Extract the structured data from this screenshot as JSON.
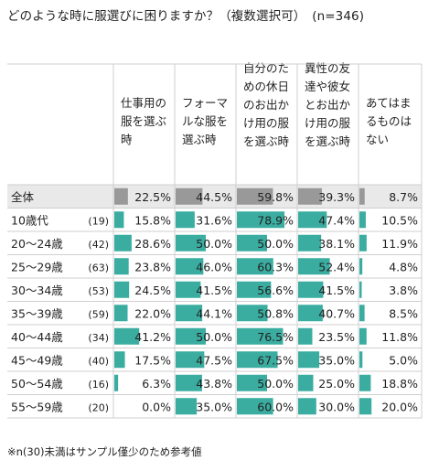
{
  "title": "どのような時に服選びに困りますか？（複数選択可）　(n=346)",
  "footnote": "※n(30)未満はサンプル僅少のため参考値",
  "colors": {
    "total_bar": "#999999",
    "bar": "#3aada0",
    "total_row_bg": "#e9e9e9",
    "grid": "#cfcfcf"
  },
  "chart_data": {
    "type": "table",
    "title": "どのような時に服選びに困りますか？（複数選択可）　(n=346)",
    "columns": [
      [
        "仕事用の",
        "服を選ぶ",
        "時"
      ],
      [
        "フォーマ",
        "ルな服を",
        "選ぶ時"
      ],
      [
        "自分のた",
        "めの休日",
        "のお出か",
        "け用の服",
        "を選ぶ時"
      ],
      [
        "異性の友",
        "達や彼女",
        "とお出か",
        "け用の服",
        "を選ぶ時"
      ],
      [
        "あてはま",
        "るものは",
        "ない"
      ]
    ],
    "rows": [
      {
        "label": "全体",
        "n": "",
        "values": [
          22.5,
          44.5,
          59.8,
          39.3,
          8.7
        ]
      },
      {
        "label": "10歳代",
        "n": "(19)",
        "values": [
          15.8,
          31.6,
          78.9,
          47.4,
          10.5
        ]
      },
      {
        "label": "20～24歳",
        "n": "(42)",
        "values": [
          28.6,
          50.0,
          50.0,
          38.1,
          11.9
        ]
      },
      {
        "label": "25～29歳",
        "n": "(63)",
        "values": [
          23.8,
          46.0,
          60.3,
          52.4,
          4.8
        ]
      },
      {
        "label": "30～34歳",
        "n": "(53)",
        "values": [
          24.5,
          41.5,
          56.6,
          41.5,
          3.8
        ]
      },
      {
        "label": "35～39歳",
        "n": "(59)",
        "values": [
          22.0,
          44.1,
          50.8,
          40.7,
          8.5
        ]
      },
      {
        "label": "40～44歳",
        "n": "(34)",
        "values": [
          41.2,
          50.0,
          76.5,
          23.5,
          11.8
        ]
      },
      {
        "label": "45～49歳",
        "n": "(40)",
        "values": [
          17.5,
          47.5,
          67.5,
          35.0,
          5.0
        ]
      },
      {
        "label": "50～54歳",
        "n": "(16)",
        "values": [
          6.3,
          43.8,
          50.0,
          25.0,
          18.8
        ]
      },
      {
        "label": "55～59歳",
        "n": "(20)",
        "values": [
          0.0,
          35.0,
          60.0,
          30.0,
          20.0
        ]
      }
    ],
    "value_format": "percent_1dp"
  }
}
